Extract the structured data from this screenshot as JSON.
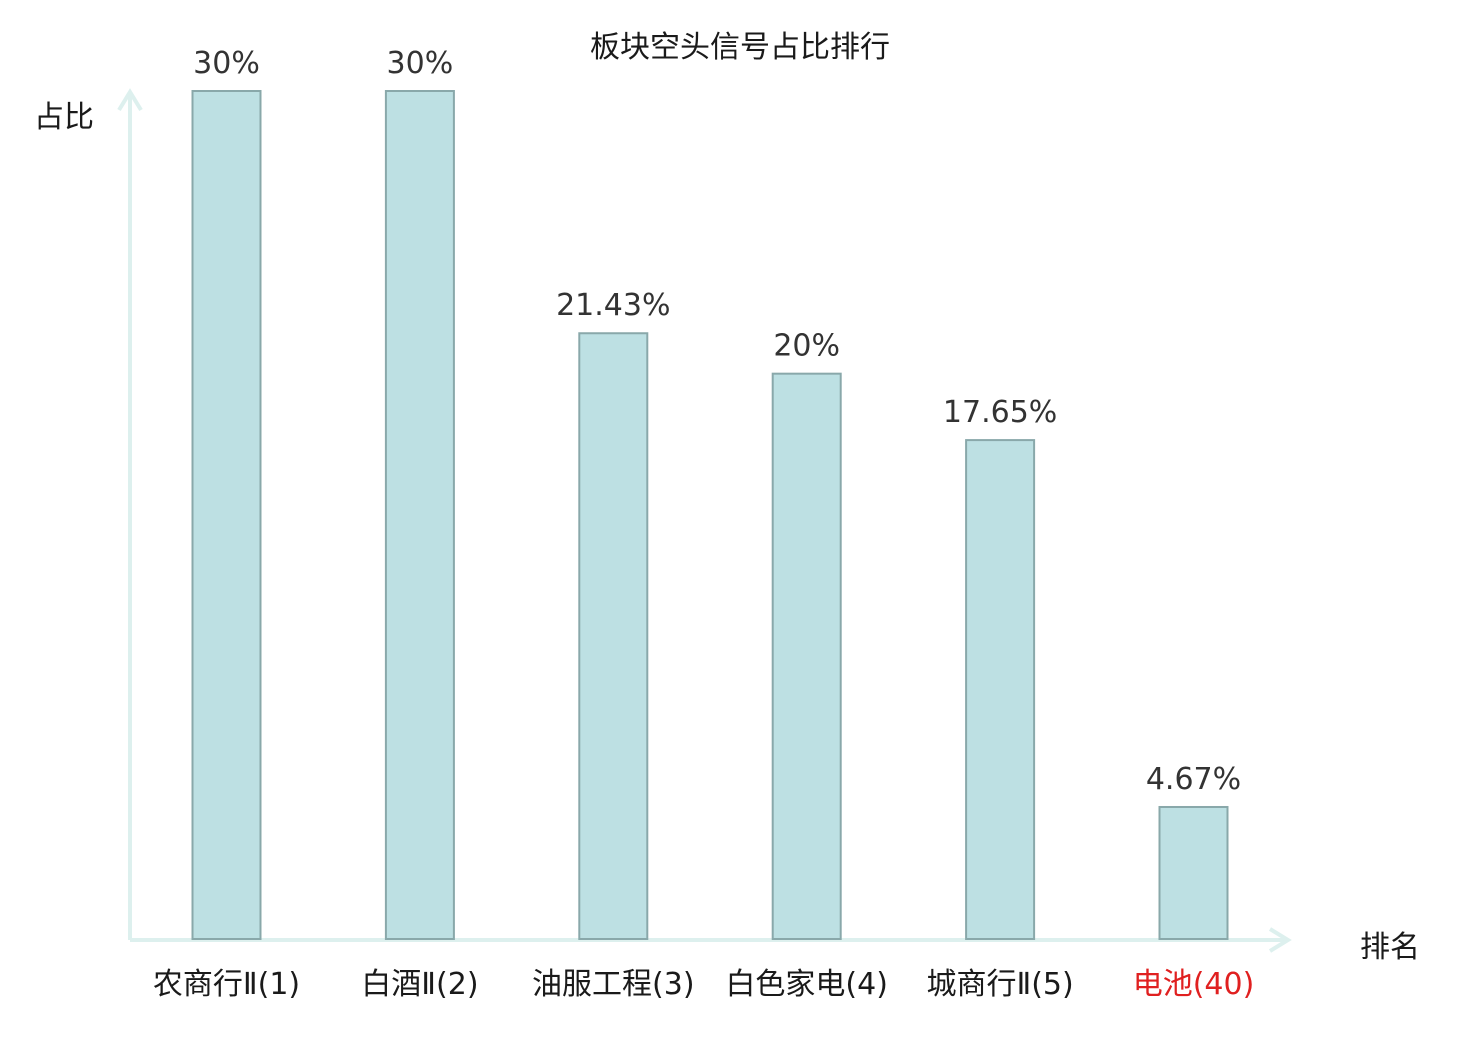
{
  "chart_data": {
    "type": "bar",
    "title": "板块空头信号占比排行",
    "ylabel": "占比",
    "xlabel": "排名",
    "categories": [
      "农商行Ⅱ(1)",
      "白酒Ⅱ(2)",
      "油服工程(3)",
      "白色家电(4)",
      "城商行Ⅱ(5)",
      "电池(40)"
    ],
    "values": [
      30,
      30,
      21.43,
      20,
      17.65,
      4.67
    ],
    "value_labels": [
      "30%",
      "30%",
      "21.43%",
      "20%",
      "17.65%",
      "4.67%"
    ],
    "ylim": [
      0,
      30
    ],
    "grid": false,
    "highlight_index": 5,
    "colors": {
      "bar_fill": "#bde0e3",
      "bar_stroke": "#89a8aa",
      "axis": "#ddf0ee",
      "label": "#1a1a1a",
      "highlight": "#e02020"
    }
  }
}
